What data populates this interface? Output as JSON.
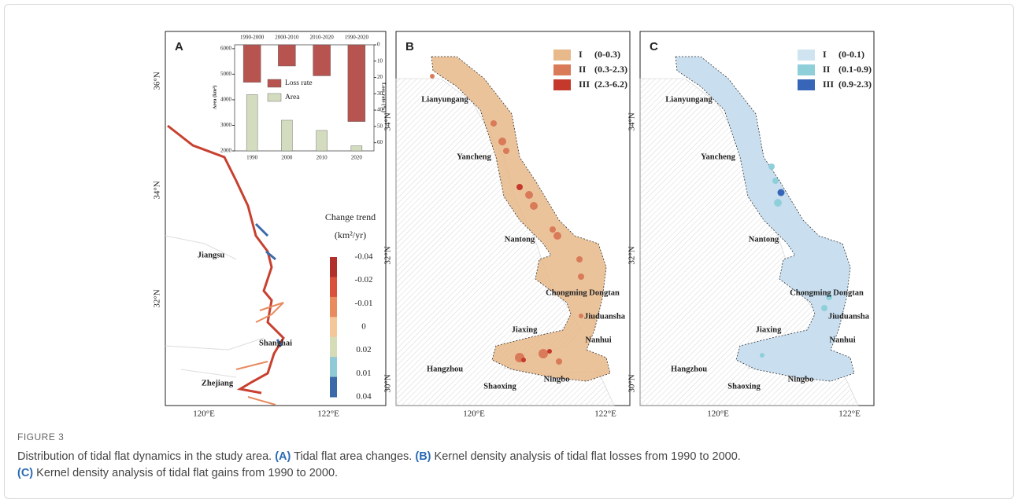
{
  "panels": [
    {
      "letter": "A",
      "lat_labels": [
        "36°N",
        "34°N",
        "32°N"
      ],
      "lon_labels": [
        "120°E",
        "122°E"
      ],
      "places": [
        "Jiangsu",
        "Shanghai",
        "Zhejiang"
      ],
      "legend": {
        "title": "Change trend",
        "unit": "(km²/yr)",
        "labels": [
          "-0.04",
          "-0.02",
          "-0.01",
          "0",
          "0.02",
          "0.01",
          "0.04"
        ],
        "colors": [
          "#b2302a",
          "#d9503b",
          "#e98a5f",
          "#f3c79a",
          "#d6dcb8",
          "#8fcad6",
          "#3b6aa8"
        ]
      },
      "inset_chart": {
        "type": "bar",
        "categories": [
          "1990",
          "2000",
          "2010",
          "2020"
        ],
        "x2_categories": [
          "1990-2000",
          "2000-2010",
          "2010-2020",
          "1990-2020"
        ],
        "ylabel": "Area (km²)",
        "y2label": "Loss rate (%)",
        "ylim": [
          2000,
          6150
        ],
        "yticks": [
          2000,
          3000,
          4000,
          5000,
          6000
        ],
        "y2lim": [
          0,
          65
        ],
        "y2ticks": [
          0,
          10,
          20,
          30,
          40,
          50,
          60
        ],
        "y2_inverted": true,
        "series": [
          {
            "name": "Loss rate",
            "color": "#b85450",
            "axis": "y2",
            "values": [
              23,
              13,
              19,
              47
            ]
          },
          {
            "name": "Area",
            "color": "#d4dcc0",
            "values": [
              4200,
              3200,
              2800,
              2200
            ]
          }
        ]
      }
    },
    {
      "letter": "B",
      "lat_labels": [
        "34°N",
        "32°N",
        "30°N"
      ],
      "lon_labels": [
        "120°E",
        "122°E"
      ],
      "places": [
        "Lianyungang",
        "Yancheng",
        "Nantong",
        "Chongming Dongtan",
        "Jiuduansha",
        "Nanhui",
        "Jiaxing",
        "Hangzhou",
        "Shaoxing",
        "Ningbo"
      ],
      "legend": [
        {
          "class": "I",
          "range": "(0-0.3)",
          "color": "#e8b98a"
        },
        {
          "class": "II",
          "range": "(0.3-2.3)",
          "color": "#d97a58"
        },
        {
          "class": "III",
          "range": "(2.3-6.2)",
          "color": "#c4392c"
        }
      ]
    },
    {
      "letter": "C",
      "lat_labels": [
        "34°N",
        "32°N",
        "30°N"
      ],
      "lon_labels": [
        "120°E",
        "122°E"
      ],
      "places": [
        "Lianyungang",
        "Yancheng",
        "Nantong",
        "Chongming Dongtan",
        "Jiuduansha",
        "Nanhui",
        "Jiaxing",
        "Hangzhou",
        "Shaoxing",
        "Ningbo"
      ],
      "legend": [
        {
          "class": "I",
          "range": "(0-0.1)",
          "color": "#cfe3f0"
        },
        {
          "class": "II",
          "range": "(0.1-0.9)",
          "color": "#8ecfda"
        },
        {
          "class": "III",
          "range": "(0.9-2.3)",
          "color": "#3766b8"
        }
      ]
    }
  ],
  "caption": {
    "label": "FIGURE 3",
    "line1": [
      "Distribution of tidal flat dynamics in the study area. ",
      "(A)",
      " Tidal flat area changes. ",
      "(B)",
      " Kernel density analysis of tidal flat losses from 1990 to 2000."
    ],
    "line2": [
      "(C)",
      " Kernel density analysis of tidal flat gains from 1990 to 2000."
    ]
  }
}
